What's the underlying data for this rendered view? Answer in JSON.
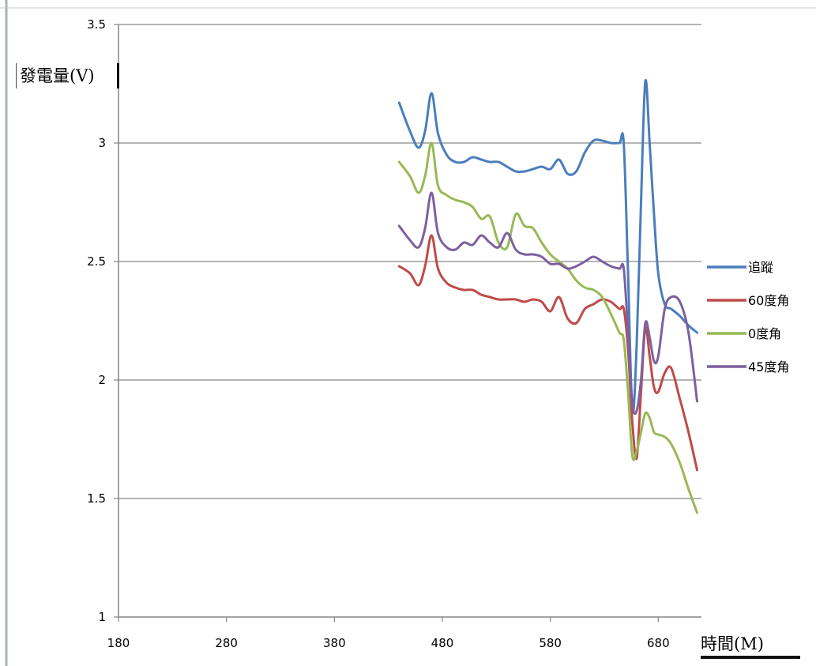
{
  "chart_data": {
    "type": "line",
    "title": "",
    "xlabel": "時間(M)",
    "ylabel": "發電量(V)",
    "xlim": [
      180,
      720
    ],
    "ylim": [
      1,
      3.5
    ],
    "xticks": [
      "180",
      "280",
      "380",
      "480",
      "580",
      "680"
    ],
    "yticks": [
      "1",
      "1.5",
      "2",
      "2.5",
      "3",
      "3.5"
    ],
    "grid": "horizontal",
    "legend_position": "right",
    "series": [
      {
        "name": "追蹤",
        "color": "#4a7ebb",
        "x": [
          440,
          450,
          458,
          464,
          470,
          476,
          484,
          492,
          500,
          508,
          516,
          524,
          532,
          540,
          548,
          556,
          564,
          572,
          580,
          588,
          596,
          604,
          612,
          620,
          628,
          636,
          644,
          648,
          652,
          656,
          660,
          664,
          668,
          672,
          676,
          680,
          686,
          692,
          700,
          708,
          716
        ],
        "values": [
          3.17,
          3.05,
          2.98,
          3.05,
          3.21,
          3.04,
          2.95,
          2.92,
          2.92,
          2.94,
          2.93,
          2.92,
          2.92,
          2.9,
          2.88,
          2.88,
          2.89,
          2.9,
          2.89,
          2.93,
          2.87,
          2.88,
          2.96,
          3.01,
          3.01,
          3.0,
          3.0,
          3.0,
          2.45,
          1.87,
          2.15,
          2.75,
          3.26,
          3.0,
          2.7,
          2.45,
          2.32,
          2.3,
          2.27,
          2.23,
          2.2
        ]
      },
      {
        "name": "60度角",
        "color": "#be4b48",
        "x": [
          440,
          450,
          458,
          464,
          470,
          476,
          484,
          492,
          500,
          508,
          516,
          524,
          532,
          540,
          548,
          556,
          564,
          572,
          580,
          588,
          596,
          604,
          612,
          620,
          628,
          636,
          644,
          648,
          652,
          656,
          660,
          664,
          668,
          672,
          676,
          680,
          686,
          692,
          700,
          708,
          716
        ],
        "values": [
          2.48,
          2.45,
          2.4,
          2.48,
          2.61,
          2.47,
          2.41,
          2.39,
          2.38,
          2.38,
          2.36,
          2.35,
          2.34,
          2.34,
          2.34,
          2.33,
          2.34,
          2.33,
          2.29,
          2.35,
          2.26,
          2.24,
          2.3,
          2.32,
          2.34,
          2.33,
          2.3,
          2.3,
          2.13,
          1.82,
          1.67,
          1.95,
          2.22,
          2.1,
          1.97,
          1.95,
          2.03,
          2.05,
          1.92,
          1.78,
          1.62
        ]
      },
      {
        "name": "0度角",
        "color": "#98b954",
        "x": [
          440,
          450,
          458,
          464,
          470,
          476,
          484,
          492,
          500,
          508,
          516,
          524,
          532,
          540,
          548,
          556,
          564,
          572,
          580,
          588,
          596,
          604,
          612,
          620,
          628,
          636,
          644,
          648,
          652,
          656,
          660,
          664,
          668,
          672,
          676,
          680,
          686,
          692,
          700,
          708,
          716
        ],
        "values": [
          2.92,
          2.86,
          2.79,
          2.86,
          3.0,
          2.82,
          2.78,
          2.76,
          2.75,
          2.73,
          2.68,
          2.69,
          2.58,
          2.56,
          2.7,
          2.65,
          2.64,
          2.58,
          2.53,
          2.5,
          2.47,
          2.42,
          2.39,
          2.38,
          2.35,
          2.28,
          2.2,
          2.17,
          1.95,
          1.68,
          1.7,
          1.78,
          1.86,
          1.84,
          1.78,
          1.77,
          1.76,
          1.73,
          1.65,
          1.54,
          1.44
        ]
      },
      {
        "name": "45度角",
        "color": "#7d60a0",
        "x": [
          440,
          450,
          458,
          464,
          470,
          476,
          484,
          492,
          500,
          508,
          516,
          524,
          532,
          540,
          548,
          556,
          564,
          572,
          580,
          588,
          596,
          604,
          612,
          620,
          628,
          636,
          644,
          648,
          652,
          656,
          660,
          664,
          668,
          672,
          676,
          680,
          686,
          692,
          700,
          708,
          716
        ],
        "values": [
          2.65,
          2.59,
          2.56,
          2.64,
          2.79,
          2.62,
          2.56,
          2.55,
          2.58,
          2.57,
          2.61,
          2.58,
          2.56,
          2.62,
          2.55,
          2.53,
          2.53,
          2.52,
          2.49,
          2.49,
          2.47,
          2.48,
          2.5,
          2.52,
          2.5,
          2.48,
          2.47,
          2.47,
          2.2,
          1.9,
          1.87,
          2.0,
          2.24,
          2.18,
          2.08,
          2.1,
          2.3,
          2.35,
          2.33,
          2.2,
          1.91
        ]
      }
    ]
  }
}
